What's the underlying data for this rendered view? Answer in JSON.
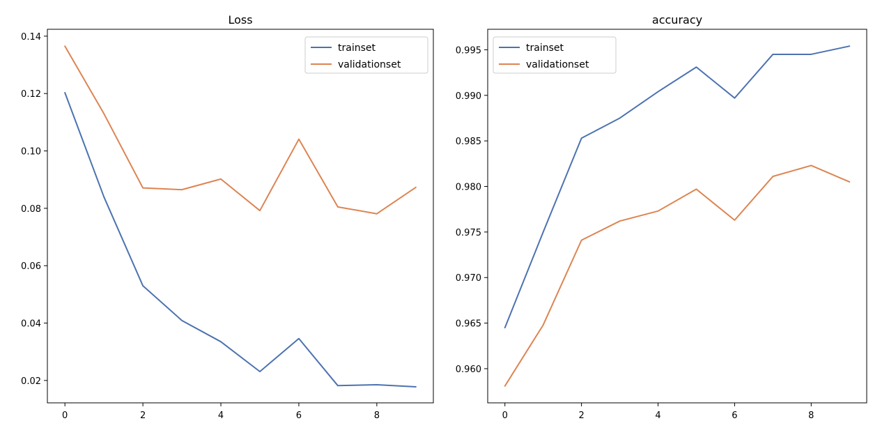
{
  "chart_data": [
    {
      "type": "line",
      "title": "Loss",
      "xlabel": "",
      "ylabel": "",
      "x": [
        0,
        1,
        2,
        3,
        4,
        5,
        6,
        7,
        8,
        9
      ],
      "xlim": [
        -0.45,
        9.45
      ],
      "ylim": [
        0.0122,
        0.1424
      ],
      "xticks": [
        0,
        2,
        4,
        6,
        8
      ],
      "yticks": [
        0.02,
        0.04,
        0.06,
        0.08,
        0.1,
        0.12,
        0.14
      ],
      "ytick_labels": [
        "0.02",
        "0.04",
        "0.06",
        "0.08",
        "0.10",
        "0.12",
        "0.14"
      ],
      "grid": false,
      "legend_position": "top-right",
      "series": [
        {
          "name": "trainset",
          "color": "#4c72b0",
          "values": [
            0.1203,
            0.084,
            0.053,
            0.0409,
            0.0335,
            0.0231,
            0.0346,
            0.0182,
            0.0185,
            0.0178
          ]
        },
        {
          "name": "validationset",
          "color": "#dd8452",
          "values": [
            0.1365,
            0.113,
            0.0871,
            0.0865,
            0.0902,
            0.0792,
            0.1041,
            0.0805,
            0.0781,
            0.0873
          ]
        }
      ]
    },
    {
      "type": "line",
      "title": "accuracy",
      "xlabel": "",
      "ylabel": "",
      "x": [
        0,
        1,
        2,
        3,
        4,
        5,
        6,
        7,
        8,
        9
      ],
      "xlim": [
        -0.45,
        9.45
      ],
      "ylim": [
        0.95625,
        0.99725
      ],
      "xticks": [
        0,
        2,
        4,
        6,
        8
      ],
      "yticks": [
        0.96,
        0.965,
        0.97,
        0.975,
        0.98,
        0.985,
        0.99,
        0.995
      ],
      "ytick_labels": [
        "0.960",
        "0.965",
        "0.970",
        "0.975",
        "0.980",
        "0.985",
        "0.990",
        "0.995"
      ],
      "grid": false,
      "legend_position": "top-left",
      "series": [
        {
          "name": "trainset",
          "color": "#4c72b0",
          "values": [
            0.9645,
            0.975,
            0.9853,
            0.9875,
            0.9904,
            0.9931,
            0.9897,
            0.9945,
            0.9945,
            0.9954
          ]
        },
        {
          "name": "validationset",
          "color": "#dd8452",
          "values": [
            0.9581,
            0.9648,
            0.9741,
            0.9762,
            0.9773,
            0.9797,
            0.9763,
            0.9811,
            0.9823,
            0.9805
          ]
        }
      ]
    }
  ]
}
